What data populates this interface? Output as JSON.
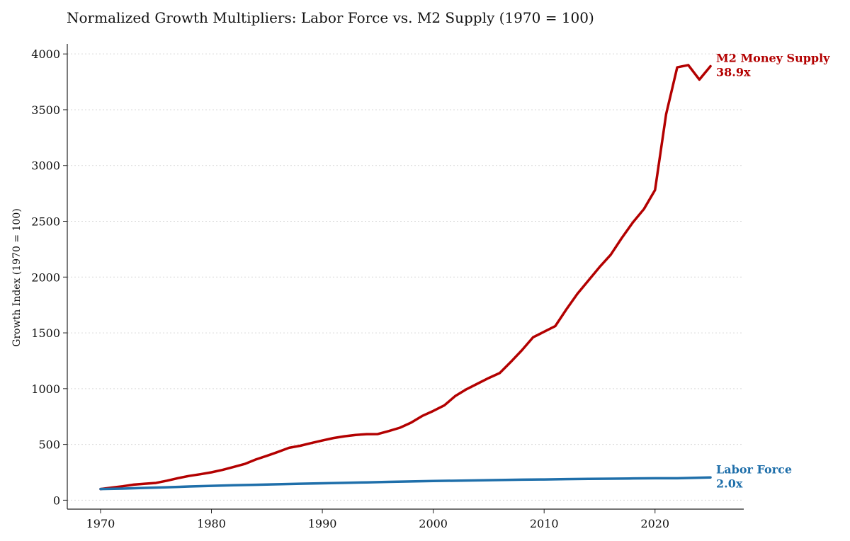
{
  "chart_data": {
    "type": "line",
    "title": "Normalized Growth Multipliers: Labor Force vs. M2 Supply (1970 = 100)",
    "xlabel": "",
    "ylabel": "Growth Index (1970 = 100)",
    "xlim": [
      1967,
      2028
    ],
    "ylim": [
      -80,
      4090
    ],
    "x_ticks": [
      1970,
      1980,
      1990,
      2000,
      2010,
      2020
    ],
    "y_ticks": [
      0,
      500,
      1000,
      1500,
      2000,
      2500,
      3000,
      3500,
      4000
    ],
    "grid": "horizontal-dotted",
    "series": [
      {
        "name": "M2 Money Supply",
        "color": "#b30000",
        "label_line1": "M2 Money Supply",
        "label_line2": "38.9x",
        "x": [
          1970,
          1971,
          1972,
          1973,
          1974,
          1975,
          1976,
          1977,
          1978,
          1979,
          1980,
          1981,
          1982,
          1983,
          1984,
          1985,
          1986,
          1987,
          1988,
          1989,
          1990,
          1991,
          1992,
          1993,
          1994,
          1995,
          1996,
          1997,
          1998,
          1999,
          2000,
          2001,
          2002,
          2003,
          2004,
          2005,
          2006,
          2007,
          2008,
          2009,
          2010,
          2011,
          2012,
          2013,
          2014,
          2015,
          2016,
          2017,
          2018,
          2019,
          2020,
          2021,
          2022,
          2023,
          2024,
          2025
        ],
        "values": [
          100,
          113,
          125,
          140,
          148,
          155,
          175,
          198,
          218,
          233,
          250,
          272,
          298,
          325,
          365,
          398,
          433,
          470,
          488,
          512,
          535,
          557,
          573,
          585,
          592,
          593,
          620,
          650,
          695,
          755,
          800,
          850,
          935,
          995,
          1045,
          1095,
          1140,
          1240,
          1345,
          1460,
          1510,
          1560,
          1710,
          1850,
          1970,
          2090,
          2200,
          2350,
          2490,
          2610,
          2780,
          3460,
          3880,
          3900,
          3770,
          3890
        ]
      },
      {
        "name": "Labor Force",
        "color": "#1f6faa",
        "label_line1": "Labor Force",
        "label_line2": "2.0x",
        "x": [
          1970,
          1972,
          1974,
          1976,
          1978,
          1980,
          1982,
          1984,
          1986,
          1988,
          1990,
          1992,
          1994,
          1996,
          1998,
          2000,
          2002,
          2004,
          2006,
          2008,
          2010,
          2012,
          2014,
          2016,
          2018,
          2020,
          2022,
          2025
        ],
        "values": [
          100,
          104,
          110,
          116,
          123,
          129,
          134,
          138,
          143,
          148,
          152,
          156,
          160,
          164,
          168,
          172,
          175,
          178,
          181,
          184,
          186,
          189,
          191,
          193,
          195,
          197,
          197,
          204
        ]
      }
    ]
  }
}
